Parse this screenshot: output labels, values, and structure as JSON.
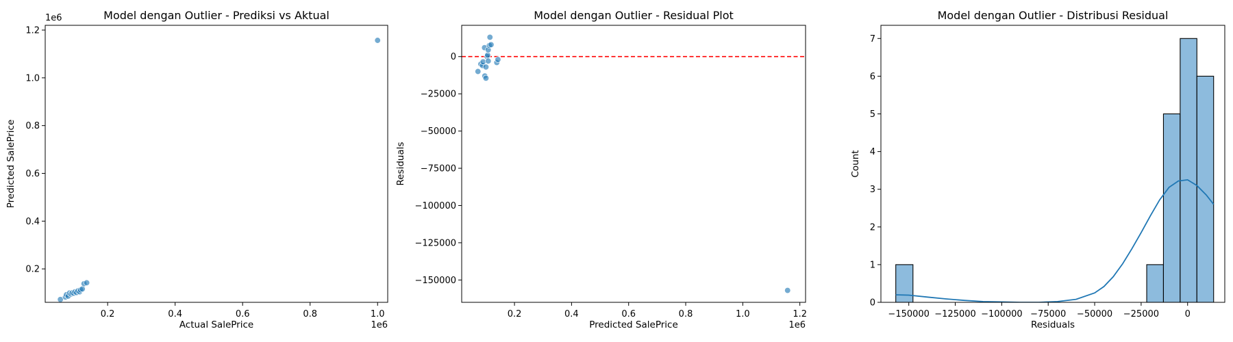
{
  "chart_data": [
    {
      "type": "scatter",
      "title": "Model dengan Outlier - Prediksi vs Aktual",
      "xlabel": "Actual SalePrice",
      "ylabel": "Predicted SalePrice",
      "x_offset_label": "1e6",
      "y_offset_label": "1e6",
      "xlim": [
        0.015,
        1.03
      ],
      "ylim": [
        0.06,
        1.22
      ],
      "xticks": [
        {
          "v": 0.2,
          "label": "0.2"
        },
        {
          "v": 0.4,
          "label": "0.4"
        },
        {
          "v": 0.6,
          "label": "0.6"
        },
        {
          "v": 0.8,
          "label": "0.8"
        },
        {
          "v": 1.0,
          "label": "1.0"
        }
      ],
      "yticks": [
        {
          "v": 0.2,
          "label": "0.2"
        },
        {
          "v": 0.4,
          "label": "0.4"
        },
        {
          "v": 0.6,
          "label": "0.6"
        },
        {
          "v": 0.8,
          "label": "0.8"
        },
        {
          "v": 1.0,
          "label": "1.0"
        },
        {
          "v": 1.2,
          "label": "1.2"
        }
      ],
      "grid": false,
      "color": "#1f77b4",
      "points": [
        {
          "x": 0.06,
          "y": 0.072
        },
        {
          "x": 0.075,
          "y": 0.082
        },
        {
          "x": 0.078,
          "y": 0.092
        },
        {
          "x": 0.083,
          "y": 0.086
        },
        {
          "x": 0.087,
          "y": 0.099
        },
        {
          "x": 0.092,
          "y": 0.095
        },
        {
          "x": 0.095,
          "y": 0.1
        },
        {
          "x": 0.1,
          "y": 0.098
        },
        {
          "x": 0.103,
          "y": 0.104
        },
        {
          "x": 0.108,
          "y": 0.101
        },
        {
          "x": 0.112,
          "y": 0.108
        },
        {
          "x": 0.117,
          "y": 0.104
        },
        {
          "x": 0.12,
          "y": 0.112
        },
        {
          "x": 0.125,
          "y": 0.116
        },
        {
          "x": 0.13,
          "y": 0.138
        },
        {
          "x": 0.138,
          "y": 0.142
        },
        {
          "x": 1.0,
          "y": 1.157
        }
      ]
    },
    {
      "type": "scatter",
      "title": "Model dengan Outlier - Residual Plot",
      "xlabel": "Predicted SalePrice",
      "ylabel": "Residuals",
      "x_offset_label": "1e6",
      "xlim": [
        0.015,
        1.22
      ],
      "ylim": [
        -165000,
        21000
      ],
      "xticks": [
        {
          "v": 0.2,
          "label": "0.2"
        },
        {
          "v": 0.4,
          "label": "0.4"
        },
        {
          "v": 0.6,
          "label": "0.6"
        },
        {
          "v": 0.8,
          "label": "0.8"
        },
        {
          "v": 1.0,
          "label": "1.0"
        },
        {
          "v": 1.2,
          "label": "1.2"
        }
      ],
      "yticks": [
        {
          "v": 0,
          "label": "0"
        },
        {
          "v": -25000,
          "label": "−25000"
        },
        {
          "v": -50000,
          "label": "−50000"
        },
        {
          "v": -75000,
          "label": "−75000"
        },
        {
          "v": -100000,
          "label": "−100000"
        },
        {
          "v": -125000,
          "label": "−125000"
        },
        {
          "v": -150000,
          "label": "−150000"
        }
      ],
      "reference_line": {
        "y": 0,
        "color": "#ff0000",
        "style": "dashed"
      },
      "grid": false,
      "color": "#1f77b4",
      "points": [
        {
          "x": 0.072,
          "y": -10000
        },
        {
          "x": 0.082,
          "y": -5000
        },
        {
          "x": 0.088,
          "y": -6000
        },
        {
          "x": 0.09,
          "y": -3500
        },
        {
          "x": 0.095,
          "y": 6000
        },
        {
          "x": 0.096,
          "y": -13000
        },
        {
          "x": 0.1,
          "y": -14500
        },
        {
          "x": 0.1,
          "y": -7000
        },
        {
          "x": 0.104,
          "y": 0
        },
        {
          "x": 0.106,
          "y": 1000
        },
        {
          "x": 0.108,
          "y": -3000
        },
        {
          "x": 0.108,
          "y": 4500
        },
        {
          "x": 0.112,
          "y": 7500
        },
        {
          "x": 0.114,
          "y": 13000
        },
        {
          "x": 0.118,
          "y": 8000
        },
        {
          "x": 0.138,
          "y": -4000
        },
        {
          "x": 0.142,
          "y": -2000
        },
        {
          "x": 1.157,
          "y": -157000
        }
      ]
    },
    {
      "type": "histogram",
      "title": "Model dengan Outlier - Distribusi Residual",
      "xlabel": "Residuals",
      "ylabel": "Count",
      "xlim": [
        -165000,
        20000
      ],
      "ylim": [
        0,
        7.35
      ],
      "xticks": [
        {
          "v": -150000,
          "label": "−150000"
        },
        {
          "v": -125000,
          "label": "−125000"
        },
        {
          "v": -100000,
          "label": "−100000"
        },
        {
          "v": -75000,
          "label": "−75000"
        },
        {
          "v": -50000,
          "label": "−50000"
        },
        {
          "v": -25000,
          "label": "−25000"
        },
        {
          "v": 0,
          "label": "0"
        }
      ],
      "yticks": [
        {
          "v": 0,
          "label": "0"
        },
        {
          "v": 1,
          "label": "1"
        },
        {
          "v": 2,
          "label": "2"
        },
        {
          "v": 3,
          "label": "3"
        },
        {
          "v": 4,
          "label": "4"
        },
        {
          "v": 5,
          "label": "5"
        },
        {
          "v": 6,
          "label": "6"
        },
        {
          "v": 7,
          "label": "7"
        }
      ],
      "grid": false,
      "bar_color": "#8dbbdd",
      "bar_edge": "#000000",
      "line_color": "#1f77b4",
      "bins": [
        {
          "start": -157000,
          "end": -147750,
          "count": 1
        },
        {
          "start": -22000,
          "end": -13000,
          "count": 1
        },
        {
          "start": -13000,
          "end": -4000,
          "count": 5
        },
        {
          "start": -4000,
          "end": 5000,
          "count": 7
        },
        {
          "start": 5000,
          "end": 14000,
          "count": 6
        }
      ],
      "kde": [
        {
          "x": -157000,
          "y": 0.2
        },
        {
          "x": -150000,
          "y": 0.19
        },
        {
          "x": -140000,
          "y": 0.14
        },
        {
          "x": -130000,
          "y": 0.09
        },
        {
          "x": -120000,
          "y": 0.05
        },
        {
          "x": -110000,
          "y": 0.02
        },
        {
          "x": -100000,
          "y": 0.01
        },
        {
          "x": -90000,
          "y": 0.0
        },
        {
          "x": -80000,
          "y": 0.0
        },
        {
          "x": -70000,
          "y": 0.02
        },
        {
          "x": -60000,
          "y": 0.08
        },
        {
          "x": -50000,
          "y": 0.25
        },
        {
          "x": -45000,
          "y": 0.42
        },
        {
          "x": -40000,
          "y": 0.68
        },
        {
          "x": -35000,
          "y": 1.02
        },
        {
          "x": -30000,
          "y": 1.42
        },
        {
          "x": -25000,
          "y": 1.85
        },
        {
          "x": -20000,
          "y": 2.3
        },
        {
          "x": -15000,
          "y": 2.72
        },
        {
          "x": -10000,
          "y": 3.05
        },
        {
          "x": -5000,
          "y": 3.22
        },
        {
          "x": 0,
          "y": 3.25
        },
        {
          "x": 5000,
          "y": 3.1
        },
        {
          "x": 10000,
          "y": 2.85
        },
        {
          "x": 14000,
          "y": 2.6
        }
      ]
    }
  ]
}
